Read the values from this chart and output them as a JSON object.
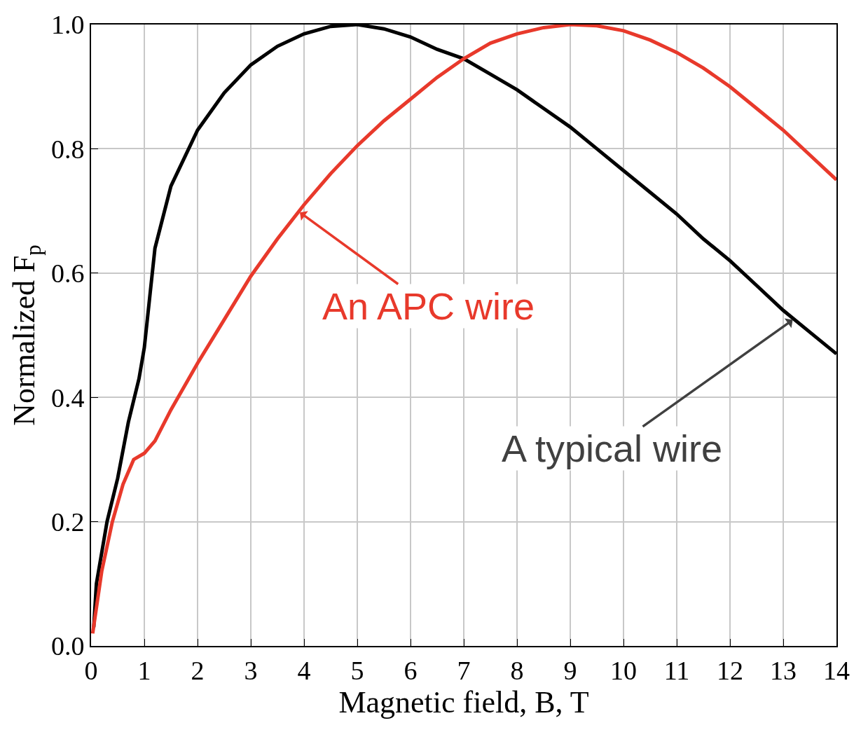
{
  "chart_data": {
    "type": "line",
    "xlabel": "Magnetic field, B, T",
    "ylabel": "Normalized F$_{p}$",
    "xlim": [
      0,
      14
    ],
    "xticks": [
      0,
      1,
      2,
      3,
      4,
      5,
      6,
      7,
      8,
      9,
      10,
      11,
      12,
      13,
      14
    ],
    "ylim": [
      0,
      1
    ],
    "yticks": [
      {
        "value": 0,
        "label": "0.0"
      },
      {
        "value": 0.2,
        "label": "0.2"
      },
      {
        "value": 0.4,
        "label": "0.4"
      },
      {
        "value": 0.6,
        "label": "0.6"
      },
      {
        "value": 0.8,
        "label": "0.8"
      },
      {
        "value": 1,
        "label": "1.0"
      }
    ],
    "grid": true,
    "marker": "none",
    "line_style": "solid",
    "series": [
      {
        "color": "#000000",
        "x": [
          0.05,
          0.1,
          0.2,
          0.3,
          0.5,
          0.7,
          0.9,
          1.0,
          1.1,
          1.2,
          1.5,
          2,
          2.5,
          3,
          3.5,
          4,
          4.5,
          5,
          5.5,
          6,
          6.5,
          7,
          7.5,
          8,
          8.5,
          9,
          9.5,
          10,
          10.5,
          11,
          11.5,
          12,
          12.5,
          13,
          13.5,
          14
        ],
        "values": [
          0.03,
          0.1,
          0.15,
          0.2,
          0.27,
          0.36,
          0.43,
          0.48,
          0.56,
          0.64,
          0.74,
          0.83,
          0.89,
          0.935,
          0.965,
          0.985,
          0.997,
          1.0,
          0.993,
          0.98,
          0.96,
          0.945,
          0.92,
          0.895,
          0.865,
          0.835,
          0.8,
          0.765,
          0.73,
          0.695,
          0.655,
          0.62,
          0.58,
          0.54,
          0.505,
          0.47
        ]
      },
      {
        "color": "#e8392b",
        "x": [
          0.03,
          0.2,
          0.4,
          0.6,
          0.8,
          1.0,
          1.2,
          1.5,
          2,
          2.5,
          3,
          3.5,
          4,
          4.5,
          5,
          5.5,
          6,
          6.5,
          7,
          7.5,
          8,
          8.5,
          9,
          9.5,
          10,
          10.5,
          11,
          11.5,
          12,
          12.5,
          13,
          13.5,
          14
        ],
        "values": [
          0.02,
          0.12,
          0.2,
          0.26,
          0.3,
          0.31,
          0.33,
          0.38,
          0.455,
          0.525,
          0.595,
          0.655,
          0.71,
          0.76,
          0.805,
          0.845,
          0.88,
          0.915,
          0.945,
          0.97,
          0.985,
          0.995,
          1.0,
          0.998,
          0.99,
          0.975,
          0.955,
          0.93,
          0.9,
          0.865,
          0.83,
          0.79,
          0.75
        ]
      }
    ],
    "annotations": [
      {
        "text": "A typical wire",
        "x": 13.2,
        "y": 0.526
      },
      {
        "text": "An APC wire",
        "x": 3.9,
        "y": 0.699
      }
    ]
  }
}
